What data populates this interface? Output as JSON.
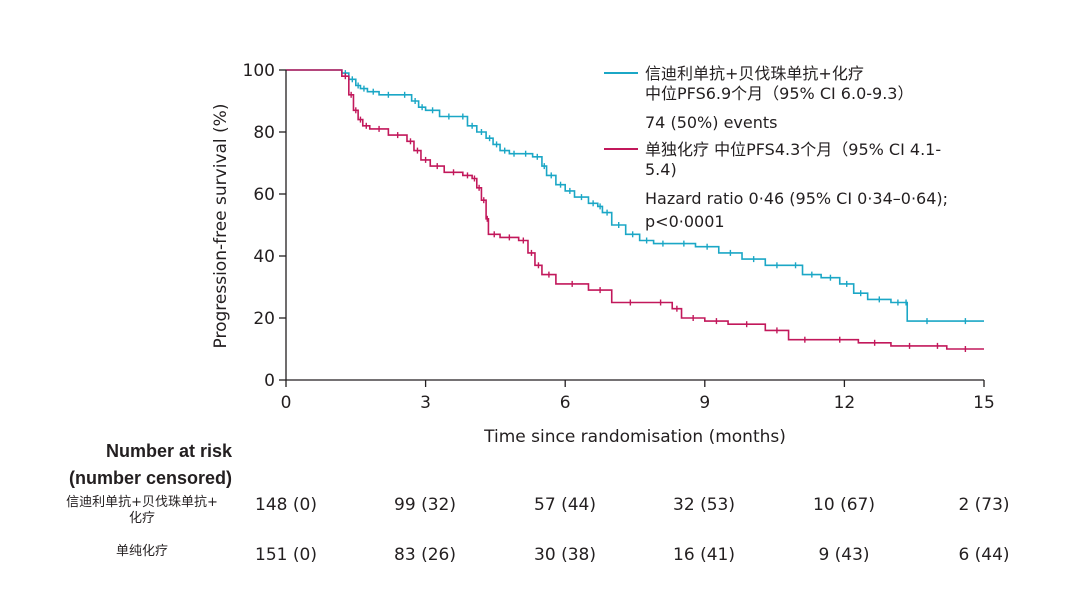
{
  "chart_data": {
    "type": "line",
    "title": "",
    "xlabel": "Time since randomisation (months)",
    "ylabel": "Progression-free survival (%)",
    "xlim": [
      0,
      15
    ],
    "ylim": [
      0,
      100
    ],
    "xticks": [
      "0",
      "3",
      "6",
      "9",
      "12",
      "15"
    ],
    "yticks": [
      "0",
      "20",
      "40",
      "60",
      "80",
      "100"
    ],
    "series": [
      {
        "name": "信迪利单抗+贝伐珠单抗+化疗",
        "legend_line1": "信迪利单抗+贝伐珠单抗+化疗",
        "legend_line2": "中位PFS6.9个月（95% CI 6.0-9.3）",
        "color": "#1ba7c6",
        "x": [
          0,
          1.2,
          1.35,
          1.5,
          1.6,
          1.75,
          2.0,
          2.4,
          2.7,
          2.85,
          3.0,
          3.3,
          3.7,
          3.9,
          4.1,
          4.3,
          4.45,
          4.6,
          4.8,
          5.0,
          5.3,
          5.5,
          5.6,
          5.8,
          6.0,
          6.2,
          6.5,
          6.7,
          6.8,
          7.0,
          7.3,
          7.6,
          7.9,
          8.3,
          8.8,
          9.3,
          9.8,
          10.3,
          10.8,
          11.1,
          11.5,
          11.9,
          12.2,
          12.5,
          13.0,
          13.3,
          13.35,
          14.2,
          15.0
        ],
        "y": [
          100,
          99,
          97,
          95,
          94,
          93,
          92,
          92,
          90,
          88,
          87,
          85,
          85,
          82,
          80,
          78,
          76,
          74,
          73,
          73,
          72,
          69,
          66,
          63,
          61,
          59,
          57,
          56,
          54,
          50,
          47,
          45,
          44,
          44,
          43,
          41,
          39,
          37,
          37,
          34,
          33,
          31,
          28,
          26,
          25,
          25,
          19,
          19,
          19
        ]
      },
      {
        "name": "单独化疗",
        "legend_line1": "单独化疗 中位PFS4.3个月（95% CI 4.1-",
        "legend_line2": "5.4)",
        "color": "#c2185b",
        "x": [
          0,
          1.2,
          1.35,
          1.45,
          1.55,
          1.65,
          1.8,
          2.2,
          2.6,
          2.75,
          2.9,
          3.1,
          3.4,
          3.8,
          4.0,
          4.1,
          4.2,
          4.3,
          4.35,
          4.6,
          5.0,
          5.2,
          5.35,
          5.5,
          5.8,
          6.5,
          7.0,
          7.8,
          8.3,
          8.5,
          9.0,
          9.5,
          10.3,
          10.8,
          11.5,
          12.3,
          13.0,
          13.8,
          14.2,
          15.0
        ],
        "y": [
          100,
          98,
          92,
          87,
          84,
          82,
          81,
          79,
          77,
          74,
          71,
          69,
          67,
          66,
          65,
          62,
          58,
          52,
          47,
          46,
          45,
          41,
          37,
          34,
          31,
          29,
          25,
          25,
          23,
          20,
          19,
          18,
          16,
          13,
          13,
          12,
          11,
          11,
          10,
          10
        ]
      }
    ],
    "legend_texts": {
      "events": "74 (50%) events",
      "hazard_line1": "Hazard ratio 0·46 (95% CI 0·34–0·64);",
      "hazard_line2": "p<0·0001"
    }
  },
  "risk_table": {
    "header_line1": "Number at risk",
    "header_line2": "(number censored)",
    "rows": [
      {
        "label_line1": "信迪利单抗+贝伐珠单抗+",
        "label_line2": "化疗",
        "cells": [
          "148 (0)",
          "99 (32)",
          "57 (44)",
          "32 (53)",
          "10 (67)",
          "2 (73)"
        ]
      },
      {
        "label_line1": "单纯化疗",
        "label_line2": "",
        "cells": [
          "151 (0)",
          "83 (26)",
          "30 (38)",
          "16 (41)",
          "9 (43)",
          "6 (44)"
        ]
      }
    ]
  }
}
